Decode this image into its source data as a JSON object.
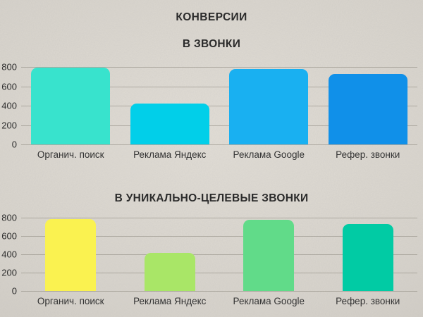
{
  "page": {
    "main_title": "КОНВЕРСИИ",
    "background_color": "#d7d3cc",
    "text_color": "#2b2b2b",
    "gridline_color": "#7a756b"
  },
  "chart_data": [
    {
      "type": "bar",
      "title": "В ЗВОНКИ",
      "categories": [
        "Органич. поиск",
        "Реклама Яндекс",
        "Реклама Google",
        "Рефер. звонки"
      ],
      "values": [
        790,
        420,
        780,
        730
      ],
      "bar_colors": [
        "#38e3cd",
        "#01cfe9",
        "#19b0f1",
        "#1090e9"
      ],
      "xlabel": "",
      "ylabel": "",
      "ylim": [
        0,
        800
      ],
      "yticks": [
        0,
        200,
        400,
        600,
        800
      ],
      "grid": true,
      "legend": "none"
    },
    {
      "type": "bar",
      "title": "В УНИКАЛЬНО-ЦЕЛЕВЫЕ ЗВОНКИ",
      "categories": [
        "Органич. поиск",
        "Реклама Яндекс",
        "Реклама Google",
        "Рефер. звонки"
      ],
      "values": [
        790,
        420,
        780,
        730
      ],
      "bar_colors": [
        "#faf250",
        "#a9e667",
        "#61db89",
        "#01cba4"
      ],
      "xlabel": "",
      "ylabel": "",
      "ylim": [
        0,
        800
      ],
      "yticks": [
        0,
        200,
        400,
        600,
        800
      ],
      "grid": true,
      "legend": "none"
    }
  ]
}
